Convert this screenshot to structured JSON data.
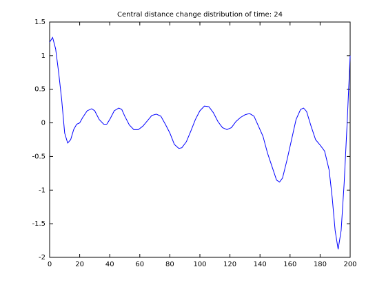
{
  "chart_data": {
    "type": "line",
    "title": "Central distance change distribution of time: 24",
    "x": [
      0,
      2,
      4,
      6,
      8,
      10,
      12,
      14,
      16,
      18,
      20,
      22,
      25,
      28,
      30,
      33,
      36,
      38,
      40,
      43,
      46,
      48,
      50,
      53,
      56,
      59,
      62,
      65,
      68,
      71,
      74,
      77,
      80,
      83,
      86,
      88,
      91,
      94,
      97,
      100,
      103,
      106,
      109,
      112,
      115,
      118,
      121,
      124,
      127,
      130,
      133,
      136,
      139,
      142,
      145,
      148,
      151,
      153,
      155,
      158,
      161,
      164,
      167,
      169,
      171,
      174,
      177,
      180,
      183,
      186,
      188,
      190,
      192,
      194,
      196,
      198,
      200
    ],
    "values": [
      1.2,
      1.27,
      1.1,
      0.75,
      0.35,
      -0.15,
      -0.3,
      -0.25,
      -0.1,
      -0.02,
      0.0,
      0.08,
      0.18,
      0.21,
      0.18,
      0.05,
      -0.02,
      -0.02,
      0.05,
      0.18,
      0.22,
      0.2,
      0.1,
      -0.03,
      -0.1,
      -0.1,
      -0.05,
      0.03,
      0.11,
      0.13,
      0.1,
      -0.02,
      -0.15,
      -0.32,
      -0.38,
      -0.37,
      -0.28,
      -0.12,
      0.05,
      0.18,
      0.25,
      0.24,
      0.15,
      0.02,
      -0.07,
      -0.1,
      -0.07,
      0.02,
      0.08,
      0.12,
      0.14,
      0.1,
      -0.05,
      -0.2,
      -0.45,
      -0.65,
      -0.85,
      -0.88,
      -0.82,
      -0.55,
      -0.25,
      0.05,
      0.2,
      0.22,
      0.17,
      -0.05,
      -0.25,
      -0.33,
      -0.42,
      -0.7,
      -1.1,
      -1.6,
      -1.88,
      -1.6,
      -0.9,
      0.0,
      1.0
    ],
    "color": "#0000ff",
    "xlim": [
      0,
      200
    ],
    "xticks": [
      0,
      20,
      40,
      60,
      80,
      100,
      120,
      140,
      160,
      180,
      200
    ],
    "ylim": [
      -2,
      1.5
    ],
    "yticks": [
      -2,
      -1.5,
      -1,
      -0.5,
      0,
      0.5,
      1,
      1.5
    ],
    "grid": false
  }
}
